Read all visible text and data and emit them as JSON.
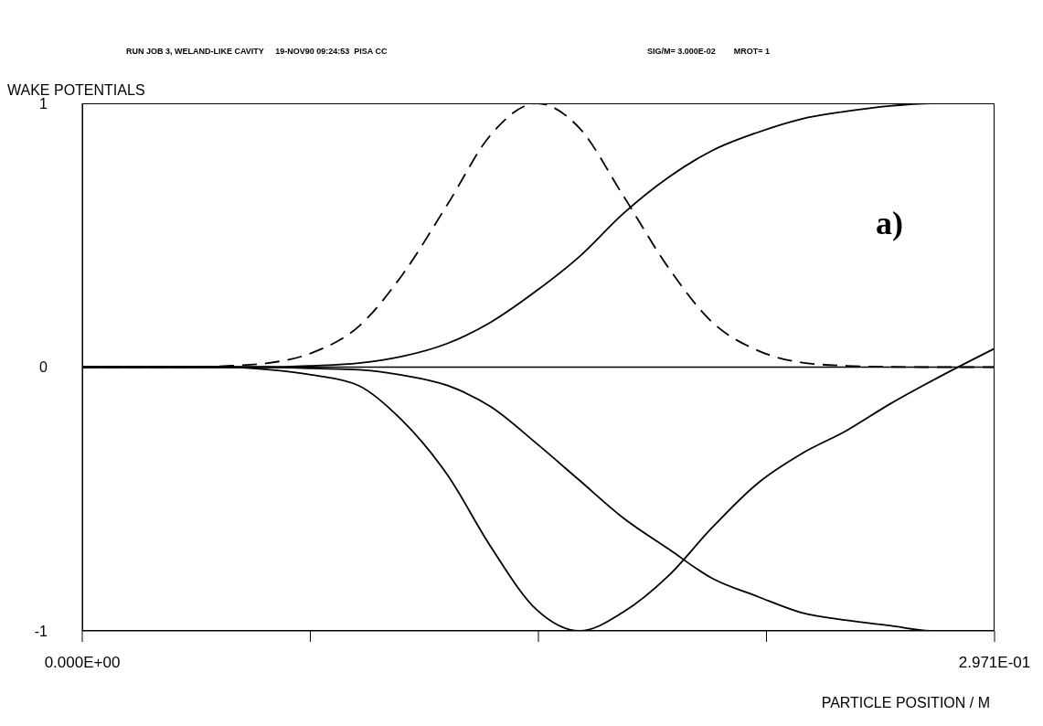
{
  "chart_data": {
    "type": "line",
    "title": "RUN JOB 3, WELAND-LIKE CAVITY     19-NOV90 09:24:53  PISA CC",
    "subtitle": "SIG/M= 3.000E-02        MROT= 1",
    "ylabel": "WAKE POTENTIALS",
    "xlabel": "PARTICLE POSITION / M",
    "annotations": [
      "a)"
    ],
    "x": [
      0,
      0.032,
      0.046,
      0.061,
      0.075,
      0.09,
      0.104,
      0.119,
      0.133,
      0.148,
      0.162,
      0.176,
      0.191,
      0.205,
      0.22,
      0.234,
      0.249,
      0.263,
      0.277,
      0.297
    ],
    "series": [
      {
        "color": "#000000",
        "line_style": "dashed",
        "values": [
          0,
          0,
          0.004,
          0.016,
          0.055,
          0.154,
          0.346,
          0.618,
          0.88,
          1.0,
          0.905,
          0.653,
          0.375,
          0.172,
          0.063,
          0.018,
          0.005,
          0.001,
          0,
          0
        ]
      },
      {
        "color": "#000000",
        "line_style": "solid",
        "values": [
          0,
          0,
          0,
          0,
          0.005,
          0.015,
          0.04,
          0.09,
          0.17,
          0.29,
          0.42,
          0.58,
          0.72,
          0.82,
          0.89,
          0.94,
          0.97,
          0.99,
          1.0,
          1.0
        ]
      },
      {
        "color": "#000000",
        "line_style": "solid",
        "values": [
          0,
          0,
          0,
          -0.01,
          -0.03,
          -0.07,
          -0.2,
          -0.41,
          -0.68,
          -0.92,
          -1.0,
          -0.93,
          -0.79,
          -0.61,
          -0.44,
          -0.33,
          -0.24,
          -0.14,
          -0.05,
          0.07
        ]
      },
      {
        "color": "#000000",
        "line_style": "solid",
        "values": [
          0,
          0,
          0,
          0,
          -0.005,
          -0.01,
          -0.03,
          -0.07,
          -0.15,
          -0.29,
          -0.43,
          -0.57,
          -0.69,
          -0.8,
          -0.87,
          -0.93,
          -0.96,
          -0.98,
          -1.0,
          -1.0
        ]
      }
    ],
    "xlim": [
      0,
      0.2971
    ],
    "xticks": [
      {
        "value": 0,
        "label": "0.000E+00"
      },
      {
        "value": 0.074275,
        "label": null
      },
      {
        "value": 0.14855,
        "label": null
      },
      {
        "value": 0.222825,
        "label": null
      },
      {
        "value": 0.2971,
        "label": "2.971E-01"
      }
    ],
    "ylim": [
      -1,
      1
    ],
    "yticks": [
      -1,
      0,
      1
    ],
    "ref_lines": [
      {
        "axis": "y",
        "value": 0,
        "color": "#000000"
      }
    ],
    "marker": "none"
  }
}
